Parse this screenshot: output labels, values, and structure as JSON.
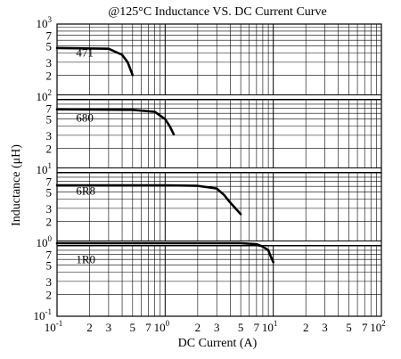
{
  "chart_data": {
    "type": "line",
    "title": "@125°C Inductance VS. DC Current Curve",
    "xlabel": "DC Current (A)",
    "ylabel": "Inductance (μH)",
    "x_scale": "log",
    "y_scale": "log",
    "xlim": [
      0.1,
      100
    ],
    "ylim": [
      0.1,
      1000
    ],
    "grid": true,
    "x_ticks": [
      {
        "value": 0.1,
        "base": "10",
        "exp": "-1"
      },
      {
        "value": 0.2,
        "base": "2"
      },
      {
        "value": 0.3,
        "base": "3"
      },
      {
        "value": 0.5,
        "base": "5"
      },
      {
        "value": 0.7,
        "base": "7"
      },
      {
        "value": 1,
        "base": "10",
        "exp": "0"
      },
      {
        "value": 2,
        "base": "2"
      },
      {
        "value": 3,
        "base": "3"
      },
      {
        "value": 5,
        "base": "5"
      },
      {
        "value": 7,
        "base": "7"
      },
      {
        "value": 10,
        "base": "10",
        "exp": "1"
      },
      {
        "value": 20,
        "base": "2"
      },
      {
        "value": 30,
        "base": "3"
      },
      {
        "value": 50,
        "base": "5"
      },
      {
        "value": 70,
        "base": "7"
      },
      {
        "value": 100,
        "base": "10",
        "exp": "2"
      }
    ],
    "y_ticks": [
      {
        "value": 0.1,
        "base": "10",
        "exp": "-1"
      },
      {
        "value": 0.2,
        "base": "2"
      },
      {
        "value": 0.3,
        "base": "3"
      },
      {
        "value": 0.5,
        "base": "5"
      },
      {
        "value": 0.7,
        "base": "7"
      },
      {
        "value": 1,
        "base": "10",
        "exp": "0"
      },
      {
        "value": 2,
        "base": "2"
      },
      {
        "value": 3,
        "base": "3"
      },
      {
        "value": 5,
        "base": "5"
      },
      {
        "value": 7,
        "base": "7"
      },
      {
        "value": 10,
        "base": "10",
        "exp": "1"
      },
      {
        "value": 20,
        "base": "2"
      },
      {
        "value": 30,
        "base": "3"
      },
      {
        "value": 50,
        "base": "5"
      },
      {
        "value": 70,
        "base": "7"
      },
      {
        "value": 100,
        "base": "10",
        "exp": "2"
      },
      {
        "value": 200,
        "base": "2"
      },
      {
        "value": 300,
        "base": "3"
      },
      {
        "value": 500,
        "base": "5"
      },
      {
        "value": 700,
        "base": "7"
      },
      {
        "value": 1000,
        "base": "10",
        "exp": "3"
      }
    ],
    "series": [
      {
        "name": "471",
        "label_at": {
          "x": 0.15,
          "y": 360
        },
        "points": [
          [
            0.1,
            470
          ],
          [
            0.3,
            460
          ],
          [
            0.4,
            380
          ],
          [
            0.45,
            300
          ],
          [
            0.5,
            200
          ]
        ]
      },
      {
        "name": "680",
        "label_at": {
          "x": 0.15,
          "y": 46
        },
        "points": [
          [
            0.1,
            68
          ],
          [
            0.5,
            67
          ],
          [
            0.8,
            63
          ],
          [
            1.0,
            50
          ],
          [
            1.1,
            40
          ],
          [
            1.2,
            31
          ]
        ]
      },
      {
        "name": "6R8",
        "label_at": {
          "x": 0.15,
          "y": 4.6
        },
        "points": [
          [
            0.1,
            6.2
          ],
          [
            1.0,
            6.2
          ],
          [
            2.0,
            6.1
          ],
          [
            3.0,
            5.6
          ],
          [
            3.5,
            4.6
          ],
          [
            4.0,
            3.6
          ],
          [
            5.0,
            2.5
          ]
        ]
      },
      {
        "name": "1R0",
        "label_at": {
          "x": 0.15,
          "y": 0.53
        },
        "points": [
          [
            0.1,
            1.0
          ],
          [
            1.0,
            1.0
          ],
          [
            5.0,
            1.0
          ],
          [
            7.0,
            0.97
          ],
          [
            8.0,
            0.9
          ],
          [
            9.0,
            0.8
          ],
          [
            9.5,
            0.65
          ],
          [
            10.0,
            0.55
          ]
        ]
      }
    ]
  }
}
